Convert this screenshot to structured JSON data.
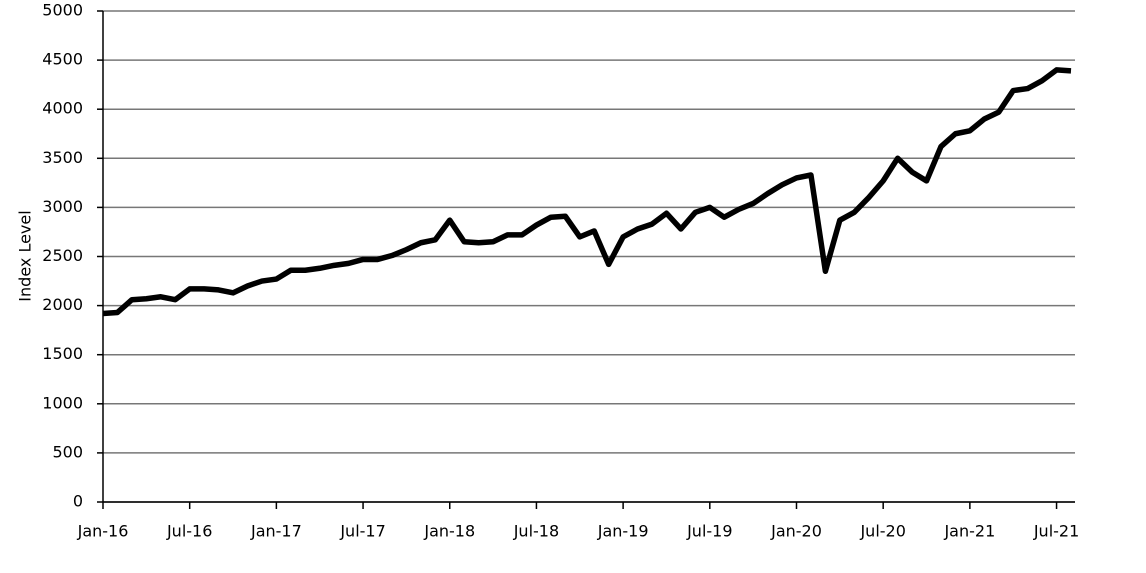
{
  "chart_data": {
    "type": "line",
    "ylabel": "Index Level",
    "x": [
      "2016-01",
      "2016-02",
      "2016-03",
      "2016-04",
      "2016-05",
      "2016-06",
      "2016-07",
      "2016-08",
      "2016-09",
      "2016-10",
      "2016-11",
      "2016-12",
      "2017-01",
      "2017-02",
      "2017-03",
      "2017-04",
      "2017-05",
      "2017-06",
      "2017-07",
      "2017-08",
      "2017-09",
      "2017-10",
      "2017-11",
      "2017-12",
      "2018-01",
      "2018-02",
      "2018-03",
      "2018-04",
      "2018-05",
      "2018-06",
      "2018-07",
      "2018-08",
      "2018-09",
      "2018-10",
      "2018-11",
      "2018-12",
      "2019-01",
      "2019-02",
      "2019-03",
      "2019-04",
      "2019-05",
      "2019-06",
      "2019-07",
      "2019-08",
      "2019-09",
      "2019-10",
      "2019-11",
      "2019-12",
      "2020-01",
      "2020-02",
      "2020-03",
      "2020-04",
      "2020-05",
      "2020-06",
      "2020-07",
      "2020-08",
      "2020-09",
      "2020-10",
      "2020-11",
      "2020-12",
      "2021-01",
      "2021-02",
      "2021-03",
      "2021-04",
      "2021-05",
      "2021-06",
      "2021-07",
      "2021-08"
    ],
    "series": [
      {
        "name": "Index Level",
        "color": "#000000",
        "values": [
          1920,
          1930,
          2060,
          2070,
          2090,
          2060,
          2170,
          2170,
          2160,
          2130,
          2200,
          2250,
          2270,
          2360,
          2360,
          2380,
          2410,
          2430,
          2470,
          2470,
          2510,
          2570,
          2640,
          2670,
          2870,
          2650,
          2640,
          2650,
          2720,
          2720,
          2820,
          2900,
          2910,
          2700,
          2760,
          2420,
          2700,
          2780,
          2830,
          2940,
          2780,
          2950,
          3000,
          2900,
          2980,
          3040,
          3140,
          3230,
          3300,
          3330,
          2350,
          2870,
          2950,
          3100,
          3270,
          3500,
          3360,
          3270,
          3620,
          3750,
          3780,
          3900,
          3970,
          4190,
          4210,
          4290,
          4400,
          4390
        ]
      }
    ],
    "xlim": [
      "2016-01",
      "2021-08"
    ],
    "xticks": [
      {
        "value": "2016-01",
        "label": "Jan-16"
      },
      {
        "value": "2016-07",
        "label": "Jul-16"
      },
      {
        "value": "2017-01",
        "label": "Jan-17"
      },
      {
        "value": "2017-07",
        "label": "Jul-17"
      },
      {
        "value": "2018-01",
        "label": "Jan-18"
      },
      {
        "value": "2018-07",
        "label": "Jul-18"
      },
      {
        "value": "2019-01",
        "label": "Jan-19"
      },
      {
        "value": "2019-07",
        "label": "Jul-19"
      },
      {
        "value": "2020-01",
        "label": "Jan-20"
      },
      {
        "value": "2020-07",
        "label": "Jul-20"
      },
      {
        "value": "2021-01",
        "label": "Jan-21"
      },
      {
        "value": "2021-07",
        "label": "Jul-21"
      }
    ],
    "ylim": [
      0,
      5000
    ],
    "yticks": [
      0,
      500,
      1000,
      1500,
      2000,
      2500,
      3000,
      3500,
      4000,
      4500,
      5000
    ],
    "grid": true
  }
}
